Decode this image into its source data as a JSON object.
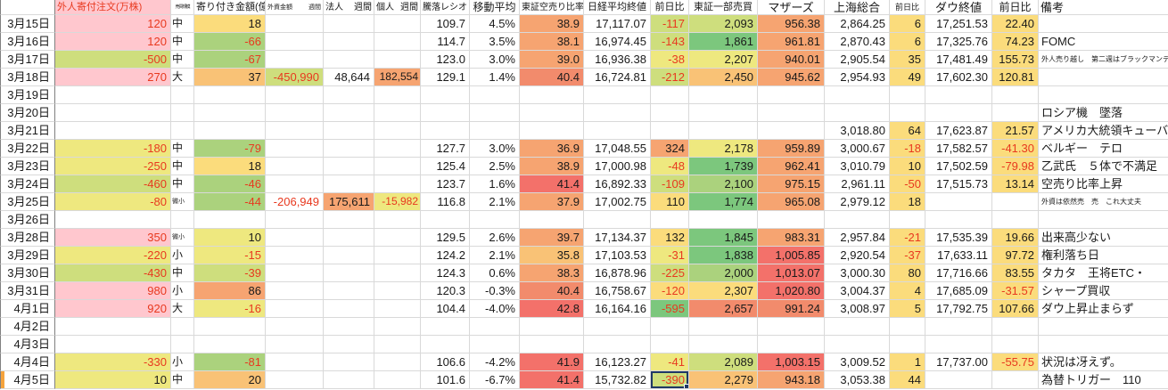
{
  "palette": {
    "pink": "#ffc7ce",
    "yellow": "#eee87f",
    "ygreen": "#cede7d",
    "lgreen": "#abd27d",
    "green": "#7cc77d",
    "gold": "#fbdc7c",
    "lorange": "#f9c276",
    "orange": "#f6a471",
    "dorange": "#f28b6c",
    "red_bg": "#f3716a",
    "neg_text": "#e8391f",
    "grid": "#d9d9d9",
    "selection": "#1f3864",
    "notch": "#f5a33c"
  },
  "header": {
    "columns": [
      {
        "key": "date",
        "label": ""
      },
      {
        "key": "gaijin",
        "label": "外人寄付注文(万株)"
      },
      {
        "key": "size",
        "label": "売買規模"
      },
      {
        "key": "yoritsuki",
        "label": "寄り付き金額(億)"
      },
      {
        "key": "gaishi",
        "label": "外資金額",
        "sub": "週間"
      },
      {
        "key": "houjin",
        "label": "法人",
        "sub": "週間"
      },
      {
        "key": "kojin",
        "label": "個人",
        "sub": "週間"
      },
      {
        "key": "ratio",
        "label": "騰落レシオ"
      },
      {
        "key": "ma",
        "label": "移動平均"
      },
      {
        "key": "karauri",
        "label": "東証空売り比率"
      },
      {
        "key": "nikkei",
        "label": "日経平均終値"
      },
      {
        "key": "nikkei_chg",
        "label": "前日比"
      },
      {
        "key": "tosho1",
        "label": "東証一部売買"
      },
      {
        "key": "mothers",
        "label": "マザーズ"
      },
      {
        "key": "shanghai",
        "label": "上海総合"
      },
      {
        "key": "shanghai_chg",
        "label": "前日比"
      },
      {
        "key": "dow",
        "label": "ダウ終値"
      },
      {
        "key": "dow_chg",
        "label": "前日比"
      },
      {
        "key": "biko",
        "label": "備考"
      }
    ]
  },
  "rows": [
    {
      "date": "3月15日",
      "cells": {
        "gaijin": {
          "t": "120",
          "bg": "pink",
          "neg": true
        },
        "size": {
          "t": "中"
        },
        "yoritsuki": {
          "t": "18",
          "bg": "gold"
        },
        "ratio": {
          "t": "109.7"
        },
        "ma": {
          "t": "4.5%"
        },
        "karauri": {
          "t": "38.9",
          "bg": "orange"
        },
        "nikkei": {
          "t": "17,117.07"
        },
        "nikkei_chg": {
          "t": "-117",
          "bg": "ygreen",
          "neg": true
        },
        "tosho1": {
          "t": "2,093",
          "bg": "ygreen"
        },
        "mothers": {
          "t": "956.38",
          "bg": "orange"
        },
        "shanghai": {
          "t": "2,864.25"
        },
        "shanghai_chg": {
          "t": "6",
          "bg": "gold"
        },
        "dow": {
          "t": "17,251.53"
        },
        "dow_chg": {
          "t": "22.40",
          "bg": "gold"
        }
      }
    },
    {
      "date": "3月16日",
      "cells": {
        "gaijin": {
          "t": "120",
          "bg": "pink",
          "neg": true
        },
        "size": {
          "t": "中"
        },
        "yoritsuki": {
          "t": "-66",
          "bg": "lgreen",
          "neg": true
        },
        "ratio": {
          "t": "114.7"
        },
        "ma": {
          "t": "3.5%"
        },
        "karauri": {
          "t": "38.1",
          "bg": "orange"
        },
        "nikkei": {
          "t": "16,974.45"
        },
        "nikkei_chg": {
          "t": "-143",
          "bg": "ygreen",
          "neg": true
        },
        "tosho1": {
          "t": "1,861",
          "bg": "green"
        },
        "mothers": {
          "t": "961.81",
          "bg": "orange"
        },
        "shanghai": {
          "t": "2,870.43"
        },
        "shanghai_chg": {
          "t": "6",
          "bg": "gold"
        },
        "dow": {
          "t": "17,325.76"
        },
        "dow_chg": {
          "t": "74.23",
          "bg": "gold"
        },
        "biko": {
          "t": "FOMC"
        }
      }
    },
    {
      "date": "3月17日",
      "cells": {
        "gaijin": {
          "t": "-500",
          "bg": "ygreen",
          "neg": true
        },
        "size": {
          "t": "中"
        },
        "yoritsuki": {
          "t": "-67",
          "bg": "lgreen",
          "neg": true
        },
        "ratio": {
          "t": "123.0"
        },
        "ma": {
          "t": "3.0%"
        },
        "karauri": {
          "t": "39.0",
          "bg": "orange"
        },
        "nikkei": {
          "t": "16,936.38"
        },
        "nikkei_chg": {
          "t": "-38",
          "bg": "yellow",
          "neg": true
        },
        "tosho1": {
          "t": "2,207",
          "bg": "yellow"
        },
        "mothers": {
          "t": "940.01",
          "bg": "orange"
        },
        "shanghai": {
          "t": "2,905.54"
        },
        "shanghai_chg": {
          "t": "35",
          "bg": "gold"
        },
        "dow": {
          "t": "17,481.49"
        },
        "dow_chg": {
          "t": "155.73",
          "bg": "gold"
        },
        "biko": {
          "t": "外人売り越し　第二週はブラックマンデー",
          "tiny": true
        }
      }
    },
    {
      "date": "3月18日",
      "cells": {
        "gaijin": {
          "t": "270",
          "bg": "pink",
          "neg": true
        },
        "size": {
          "t": "大"
        },
        "yoritsuki": {
          "t": "37",
          "bg": "lorange"
        },
        "gaishi": {
          "t": "-450,990",
          "bg": "ygreen",
          "neg": true
        },
        "houjin": {
          "t": "48,644"
        },
        "kojin": {
          "t": "182,554",
          "bg": "orange"
        },
        "ratio": {
          "t": "129.1"
        },
        "ma": {
          "t": "1.4%"
        },
        "karauri": {
          "t": "40.4",
          "bg": "dorange"
        },
        "nikkei": {
          "t": "16,724.81"
        },
        "nikkei_chg": {
          "t": "-212",
          "bg": "ygreen",
          "neg": true
        },
        "tosho1": {
          "t": "2,450",
          "bg": "lorange"
        },
        "mothers": {
          "t": "945.62",
          "bg": "orange"
        },
        "shanghai": {
          "t": "2,954.93"
        },
        "shanghai_chg": {
          "t": "49",
          "bg": "gold"
        },
        "dow": {
          "t": "17,602.30"
        },
        "dow_chg": {
          "t": "120.81",
          "bg": "gold"
        }
      }
    },
    {
      "date": "3月19日",
      "cells": {}
    },
    {
      "date": "3月20日",
      "cells": {
        "biko": {
          "t": "ロシア機　墜落"
        }
      }
    },
    {
      "date": "3月21日",
      "cells": {
        "shanghai": {
          "t": "3,018.80"
        },
        "shanghai_chg": {
          "t": "64",
          "bg": "gold"
        },
        "dow": {
          "t": "17,623.87"
        },
        "dow_chg": {
          "t": "21.57",
          "bg": "gold"
        },
        "biko": {
          "t": "アメリカ大統領キューバ"
        }
      }
    },
    {
      "date": "3月22日",
      "cells": {
        "gaijin": {
          "t": "-180",
          "bg": "yellow",
          "neg": true
        },
        "size": {
          "t": "中"
        },
        "yoritsuki": {
          "t": "-79",
          "bg": "lgreen",
          "neg": true
        },
        "ratio": {
          "t": "127.7"
        },
        "ma": {
          "t": "3.0%"
        },
        "karauri": {
          "t": "36.9",
          "bg": "orange"
        },
        "nikkei": {
          "t": "17,048.55"
        },
        "nikkei_chg": {
          "t": "324",
          "bg": "orange"
        },
        "tosho1": {
          "t": "2,178",
          "bg": "yellow"
        },
        "mothers": {
          "t": "959.89",
          "bg": "orange"
        },
        "shanghai": {
          "t": "3,000.67"
        },
        "shanghai_chg": {
          "t": "-18",
          "bg": "gold",
          "neg": true
        },
        "dow": {
          "t": "17,582.57"
        },
        "dow_chg": {
          "t": "-41.30",
          "bg": "gold",
          "neg": true
        },
        "biko": {
          "t": "ベルギー　テロ"
        }
      }
    },
    {
      "date": "3月23日",
      "cells": {
        "gaijin": {
          "t": "-250",
          "bg": "yellow",
          "neg": true
        },
        "size": {
          "t": "中"
        },
        "yoritsuki": {
          "t": "18",
          "bg": "gold"
        },
        "ratio": {
          "t": "125.4"
        },
        "ma": {
          "t": "2.5%"
        },
        "karauri": {
          "t": "38.9",
          "bg": "orange"
        },
        "nikkei": {
          "t": "17,000.98"
        },
        "nikkei_chg": {
          "t": "-48",
          "bg": "yellow",
          "neg": true
        },
        "tosho1": {
          "t": "1,739",
          "bg": "green"
        },
        "mothers": {
          "t": "962.41",
          "bg": "orange"
        },
        "shanghai": {
          "t": "3,010.79"
        },
        "shanghai_chg": {
          "t": "10",
          "bg": "gold"
        },
        "dow": {
          "t": "17,502.59"
        },
        "dow_chg": {
          "t": "-79.98",
          "bg": "gold",
          "neg": true
        },
        "biko": {
          "t": "乙武氏　５体で不満足"
        }
      }
    },
    {
      "date": "3月24日",
      "cells": {
        "gaijin": {
          "t": "-460",
          "bg": "ygreen",
          "neg": true
        },
        "size": {
          "t": "中"
        },
        "yoritsuki": {
          "t": "-46",
          "bg": "lgreen",
          "neg": true
        },
        "ratio": {
          "t": "123.7"
        },
        "ma": {
          "t": "1.6%"
        },
        "karauri": {
          "t": "41.4",
          "bg": "red_bg"
        },
        "nikkei": {
          "t": "16,892.33"
        },
        "nikkei_chg": {
          "t": "-109",
          "bg": "ygreen",
          "neg": true
        },
        "tosho1": {
          "t": "2,100",
          "bg": "lgreen"
        },
        "mothers": {
          "t": "975.15",
          "bg": "orange"
        },
        "shanghai": {
          "t": "2,961.11"
        },
        "shanghai_chg": {
          "t": "-50",
          "bg": "gold",
          "neg": true
        },
        "dow": {
          "t": "17,515.73"
        },
        "dow_chg": {
          "t": "13.14",
          "bg": "gold"
        },
        "biko": {
          "t": "空売り比率上昇"
        }
      }
    },
    {
      "date": "3月25日",
      "cells": {
        "gaijin": {
          "t": "-80",
          "bg": "yellow",
          "neg": true
        },
        "size": {
          "t": "微小",
          "tiny": true
        },
        "yoritsuki": {
          "t": "-44",
          "bg": "lgreen",
          "neg": true
        },
        "gaishi": {
          "t": "-206,949",
          "neg": true
        },
        "houjin": {
          "t": "175,611",
          "bg": "orange"
        },
        "kojin": {
          "t": "-15,982",
          "bg": "yellow",
          "neg": true
        },
        "ratio": {
          "t": "116.8"
        },
        "ma": {
          "t": "2.1%"
        },
        "karauri": {
          "t": "37.9",
          "bg": "orange"
        },
        "nikkei": {
          "t": "17,002.75"
        },
        "nikkei_chg": {
          "t": "110",
          "bg": "gold"
        },
        "tosho1": {
          "t": "1,774",
          "bg": "green"
        },
        "mothers": {
          "t": "965.08",
          "bg": "orange"
        },
        "shanghai": {
          "t": "2,979.12"
        },
        "shanghai_chg": {
          "t": "18",
          "bg": "gold"
        },
        "biko": {
          "t": "外資は依然売　売　これ大丈夫",
          "tiny": true
        }
      }
    },
    {
      "date": "3月26日",
      "cells": {}
    },
    {
      "date": "3月28日",
      "cells": {
        "gaijin": {
          "t": "350",
          "bg": "pink",
          "neg": true
        },
        "size": {
          "t": "微小",
          "tiny": true
        },
        "yoritsuki": {
          "t": "10",
          "bg": "yellow"
        },
        "ratio": {
          "t": "129.5"
        },
        "ma": {
          "t": "2.6%"
        },
        "karauri": {
          "t": "39.7",
          "bg": "orange"
        },
        "nikkei": {
          "t": "17,134.37"
        },
        "nikkei_chg": {
          "t": "132",
          "bg": "gold"
        },
        "tosho1": {
          "t": "1,845",
          "bg": "green"
        },
        "mothers": {
          "t": "983.31",
          "bg": "orange"
        },
        "shanghai": {
          "t": "2,957.84"
        },
        "shanghai_chg": {
          "t": "-21",
          "bg": "gold",
          "neg": true
        },
        "dow": {
          "t": "17,535.39"
        },
        "dow_chg": {
          "t": "19.66",
          "bg": "gold"
        },
        "biko": {
          "t": "出来高少ない"
        }
      }
    },
    {
      "date": "3月29日",
      "cells": {
        "gaijin": {
          "t": "-220",
          "bg": "yellow",
          "neg": true
        },
        "size": {
          "t": "小"
        },
        "yoritsuki": {
          "t": "-15",
          "bg": "yellow",
          "neg": true
        },
        "ratio": {
          "t": "124.2"
        },
        "ma": {
          "t": "2.1%"
        },
        "karauri": {
          "t": "35.8",
          "bg": "lorange"
        },
        "nikkei": {
          "t": "17,103.53"
        },
        "nikkei_chg": {
          "t": "-31",
          "bg": "yellow",
          "neg": true
        },
        "tosho1": {
          "t": "1,838",
          "bg": "green"
        },
        "mothers": {
          "t": "1,005.85",
          "bg": "red_bg"
        },
        "shanghai": {
          "t": "2,920.54"
        },
        "shanghai_chg": {
          "t": "-37",
          "bg": "gold",
          "neg": true
        },
        "dow": {
          "t": "17,633.11"
        },
        "dow_chg": {
          "t": "97.72",
          "bg": "gold"
        },
        "biko": {
          "t": "権利落ち日"
        }
      }
    },
    {
      "date": "3月30日",
      "cells": {
        "gaijin": {
          "t": "-430",
          "bg": "ygreen",
          "neg": true
        },
        "size": {
          "t": "中"
        },
        "yoritsuki": {
          "t": "-39",
          "bg": "ygreen",
          "neg": true
        },
        "ratio": {
          "t": "124.3"
        },
        "ma": {
          "t": "0.6%"
        },
        "karauri": {
          "t": "38.3",
          "bg": "orange"
        },
        "nikkei": {
          "t": "16,878.96"
        },
        "nikkei_chg": {
          "t": "-225",
          "bg": "ygreen",
          "neg": true
        },
        "tosho1": {
          "t": "2,000",
          "bg": "lgreen"
        },
        "mothers": {
          "t": "1,013.07",
          "bg": "red_bg"
        },
        "shanghai": {
          "t": "3,000.30"
        },
        "shanghai_chg": {
          "t": "80",
          "bg": "gold"
        },
        "dow": {
          "t": "17,716.66"
        },
        "dow_chg": {
          "t": "83.55",
          "bg": "gold"
        },
        "biko": {
          "t": "タカタ　王将ETC・"
        }
      }
    },
    {
      "date": "3月31日",
      "cells": {
        "gaijin": {
          "t": "980",
          "bg": "pink",
          "neg": true
        },
        "size": {
          "t": "小"
        },
        "yoritsuki": {
          "t": "86",
          "bg": "orange"
        },
        "ratio": {
          "t": "120.3"
        },
        "ma": {
          "t": "-0.3%"
        },
        "karauri": {
          "t": "40.4",
          "bg": "dorange"
        },
        "nikkei": {
          "t": "16,758.67"
        },
        "nikkei_chg": {
          "t": "-120",
          "bg": "gold",
          "neg": true
        },
        "tosho1": {
          "t": "2,307",
          "bg": "gold"
        },
        "mothers": {
          "t": "1,020.80",
          "bg": "red_bg"
        },
        "shanghai": {
          "t": "3,004.37"
        },
        "shanghai_chg": {
          "t": "4",
          "bg": "gold"
        },
        "dow": {
          "t": "17,685.09"
        },
        "dow_chg": {
          "t": "-31.57",
          "bg": "gold",
          "neg": true
        },
        "biko": {
          "t": "シャープ買収"
        }
      }
    },
    {
      "date": "4月1日",
      "cells": {
        "gaijin": {
          "t": "920",
          "bg": "pink",
          "neg": true
        },
        "size": {
          "t": "大"
        },
        "yoritsuki": {
          "t": "-16",
          "bg": "yellow",
          "neg": true
        },
        "ratio": {
          "t": "104.4"
        },
        "ma": {
          "t": "-4.0%"
        },
        "karauri": {
          "t": "42.8",
          "bg": "red_bg"
        },
        "nikkei": {
          "t": "16,164.16"
        },
        "nikkei_chg": {
          "t": "-595",
          "bg": "green",
          "neg": true
        },
        "tosho1": {
          "t": "2,657",
          "bg": "dorange"
        },
        "mothers": {
          "t": "991.24",
          "bg": "dorange"
        },
        "shanghai": {
          "t": "3,008.97"
        },
        "shanghai_chg": {
          "t": "5",
          "bg": "gold"
        },
        "dow": {
          "t": "17,792.75"
        },
        "dow_chg": {
          "t": "107.66",
          "bg": "gold"
        },
        "biko": {
          "t": "ダウ上昇止まらず"
        }
      }
    },
    {
      "date": "4月2日",
      "cells": {}
    },
    {
      "date": "4月3日",
      "cells": {}
    },
    {
      "date": "4月4日",
      "cells": {
        "gaijin": {
          "t": "-330",
          "bg": "yellow",
          "neg": true
        },
        "size": {
          "t": "小"
        },
        "yoritsuki": {
          "t": "-81",
          "bg": "lgreen",
          "neg": true
        },
        "ratio": {
          "t": "106.6"
        },
        "ma": {
          "t": "-4.2%"
        },
        "karauri": {
          "t": "41.9",
          "bg": "red_bg"
        },
        "nikkei": {
          "t": "16,123.27"
        },
        "nikkei_chg": {
          "t": "-41",
          "bg": "yellow",
          "neg": true
        },
        "tosho1": {
          "t": "2,089",
          "bg": "ygreen"
        },
        "mothers": {
          "t": "1,003.15",
          "bg": "red_bg"
        },
        "shanghai": {
          "t": "3,009.52"
        },
        "shanghai_chg": {
          "t": "1",
          "bg": "gold"
        },
        "dow": {
          "t": "17,737.00"
        },
        "dow_chg": {
          "t": "-55.75",
          "bg": "gold",
          "neg": true
        },
        "biko": {
          "t": "状況は冴えず。"
        }
      }
    },
    {
      "date": "4月5日",
      "notch": true,
      "cells": {
        "gaijin": {
          "t": "10",
          "bg": "yellow"
        },
        "size": {
          "t": "中"
        },
        "yoritsuki": {
          "t": "20",
          "bg": "lorange"
        },
        "ratio": {
          "t": "101.6"
        },
        "ma": {
          "t": "-6.7%"
        },
        "karauri": {
          "t": "41.4",
          "bg": "red_bg"
        },
        "nikkei": {
          "t": "15,732.82"
        },
        "nikkei_chg": {
          "t": "-390",
          "bg": "ygreen",
          "neg": true,
          "sel": true
        },
        "tosho1": {
          "t": "2,279",
          "bg": "lorange"
        },
        "mothers": {
          "t": "943.18",
          "bg": "orange"
        },
        "shanghai": {
          "t": "3,053.38"
        },
        "shanghai_chg": {
          "t": "44",
          "bg": "gold"
        },
        "biko": {
          "t": "為替トリガー　110"
        }
      }
    }
  ]
}
